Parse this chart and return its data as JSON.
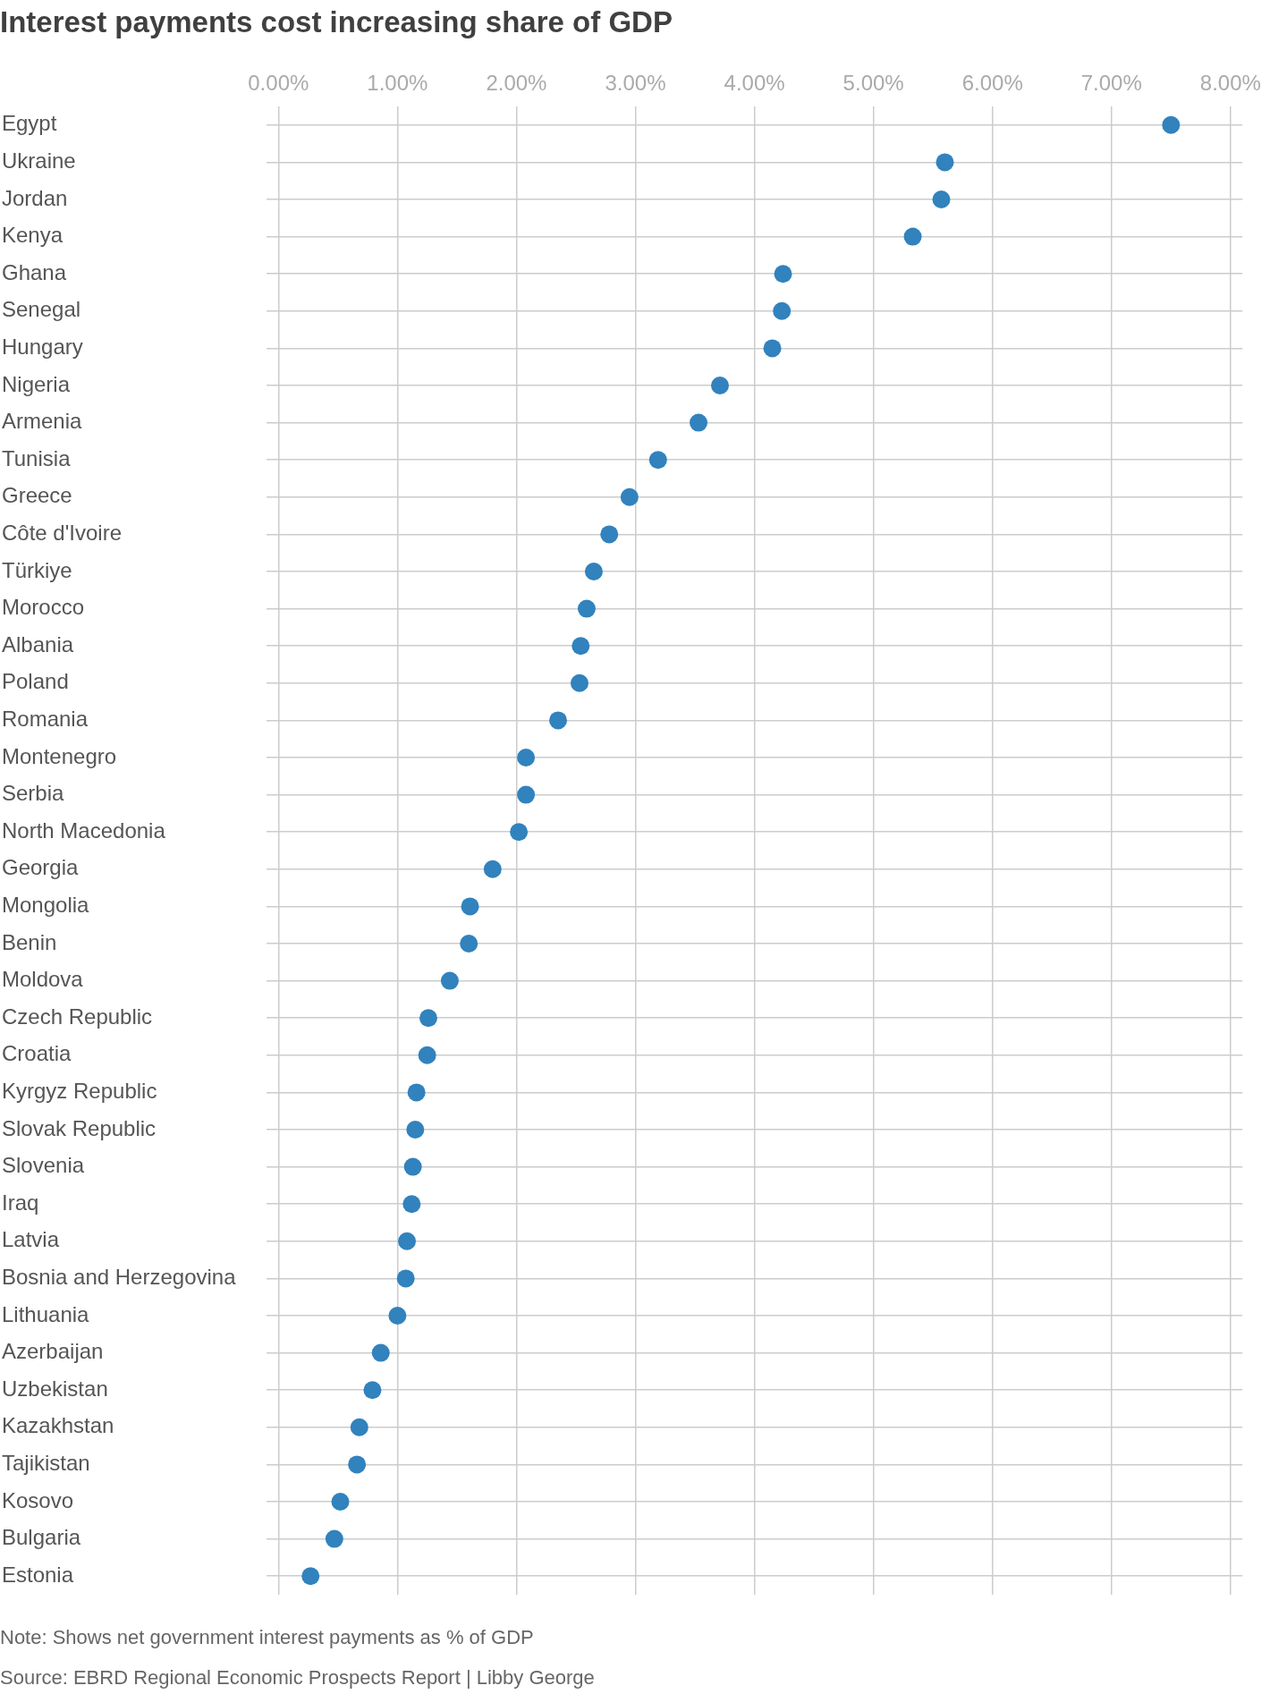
{
  "chart_data": {
    "type": "scatter",
    "orientation": "horizontal",
    "title": "Interest payments cost increasing share of GDP",
    "categories": [
      "Egypt",
      "Ukraine",
      "Jordan",
      "Kenya",
      "Ghana",
      "Senegal",
      "Hungary",
      "Nigeria",
      "Armenia",
      "Tunisia",
      "Greece",
      "Côte d'Ivoire",
      "Türkiye",
      "Morocco",
      "Albania",
      "Poland",
      "Romania",
      "Montenegro",
      "Serbia",
      "North Macedonia",
      "Georgia",
      "Mongolia",
      "Benin",
      "Moldova",
      "Czech Republic",
      "Croatia",
      "Kyrgyz Republic",
      "Slovak Republic",
      "Slovenia",
      "Iraq",
      "Latvia",
      "Bosnia and Herzegovina",
      "Lithuania",
      "Azerbaijan",
      "Uzbekistan",
      "Kazakhstan",
      "Tajikistan",
      "Kosovo",
      "Bulgaria",
      "Estonia"
    ],
    "values": [
      7.5,
      5.6,
      5.57,
      5.33,
      4.24,
      4.23,
      4.15,
      3.71,
      3.53,
      3.19,
      2.95,
      2.78,
      2.65,
      2.59,
      2.54,
      2.53,
      2.35,
      2.08,
      2.08,
      2.02,
      1.8,
      1.61,
      1.6,
      1.44,
      1.26,
      1.25,
      1.16,
      1.15,
      1.13,
      1.12,
      1.08,
      1.07,
      1.0,
      0.86,
      0.79,
      0.68,
      0.66,
      0.52,
      0.47,
      0.27
    ],
    "color": "#3182bd",
    "marker": "circle",
    "grid": true,
    "xlim": [
      -0.1,
      8.1
    ],
    "xticks": [
      {
        "value": 0,
        "label": "0.00%"
      },
      {
        "value": 1,
        "label": "1.00%"
      },
      {
        "value": 2,
        "label": "2.00%"
      },
      {
        "value": 3,
        "label": "3.00%"
      },
      {
        "value": 4,
        "label": "4.00%"
      },
      {
        "value": 5,
        "label": "5.00%"
      },
      {
        "value": 6,
        "label": "6.00%"
      },
      {
        "value": 7,
        "label": "7.00%"
      },
      {
        "value": 8,
        "label": "8.00%"
      }
    ],
    "annotations": [
      "Note: Shows net government interest payments as % of GDP",
      "Source: EBRD Regional Economic Prospects Report | Libby George"
    ]
  }
}
